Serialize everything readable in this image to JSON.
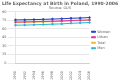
{
  "chart_data": {
    "type": "line",
    "title": "Life Expectancy at Birth in Poland, 1990-2006",
    "subtitle": "Source: GUS",
    "categories": [
      "1990",
      "1992",
      "1994",
      "1996",
      "1998",
      "2000",
      "2002",
      "2004",
      "2006"
    ],
    "series": [
      {
        "name": "Women",
        "color": "#1f3fbf",
        "values": [
          75.5,
          75.7,
          76.1,
          76.4,
          77.0,
          77.5,
          78.4,
          78.8,
          79.6
        ]
      },
      {
        "name": "Urban",
        "color": "#e0309a",
        "values": [
          71.8,
          72.0,
          72.4,
          72.7,
          73.2,
          73.7,
          74.5,
          75.0,
          75.4
        ]
      },
      {
        "name": "Total",
        "color": "#e8c020",
        "values": [
          71.0,
          71.2,
          71.6,
          72.0,
          72.5,
          73.0,
          73.9,
          74.4,
          75.0
        ]
      },
      {
        "name": "Men",
        "color": "#20b8d8",
        "values": [
          66.3,
          66.5,
          66.9,
          67.4,
          68.1,
          68.5,
          69.6,
          70.2,
          70.9
        ]
      }
    ],
    "ylim": [
      0,
      90
    ],
    "yticks": [
      0,
      15,
      30,
      45,
      60,
      75,
      90
    ],
    "grid": true,
    "legend": "right",
    "marker": "circle"
  }
}
